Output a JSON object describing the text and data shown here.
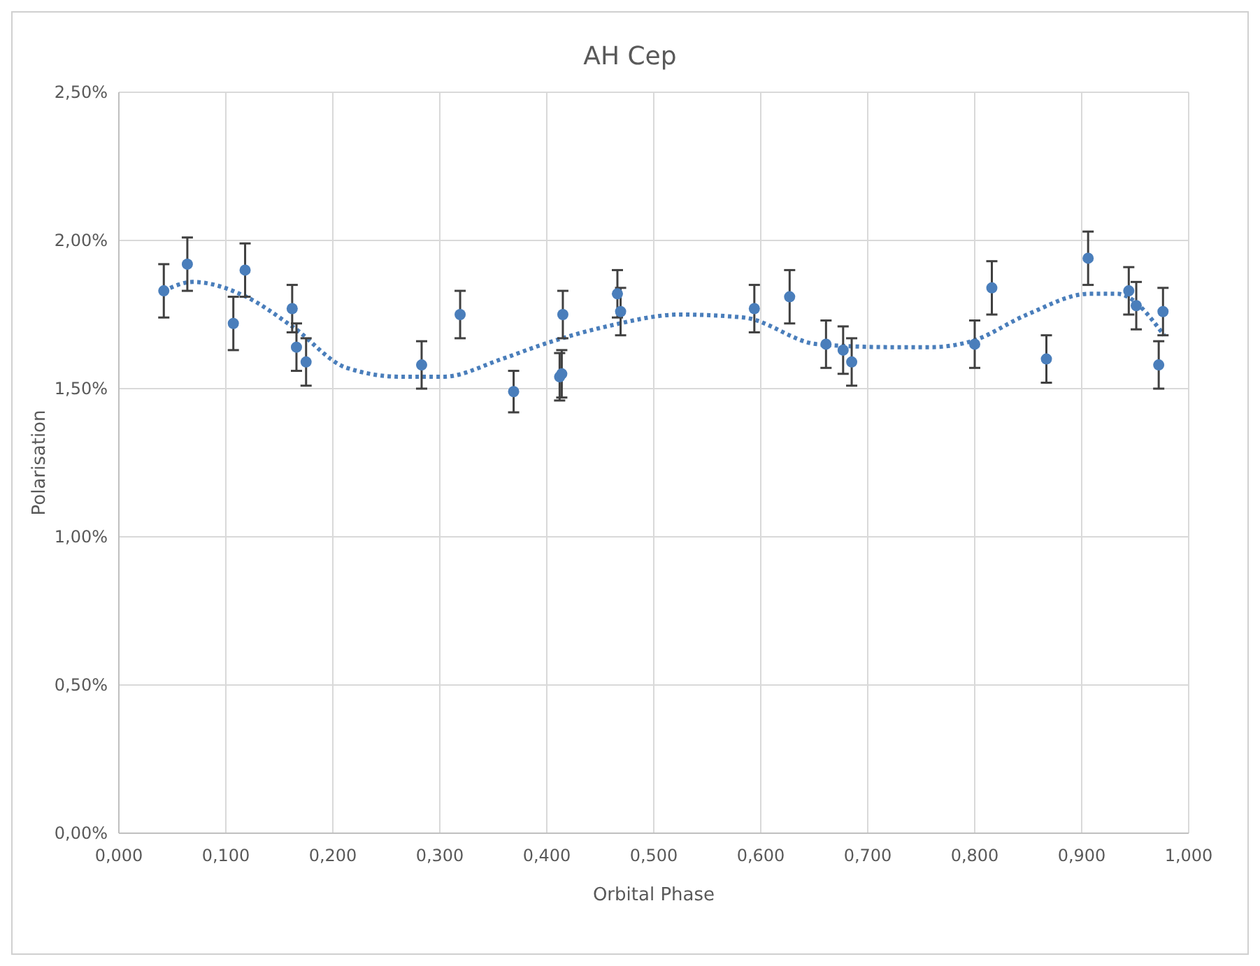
{
  "chart_data": {
    "type": "scatter",
    "title": "AH Cep",
    "xlabel": "Orbital Phase",
    "ylabel": "Polarisation",
    "xlim": [
      0,
      1
    ],
    "ylim": [
      0,
      2.5
    ],
    "xticks": [
      {
        "value": 0,
        "label": "0,000"
      },
      {
        "value": 0.1,
        "label": "0,100"
      },
      {
        "value": 0.2,
        "label": "0,200"
      },
      {
        "value": 0.3,
        "label": "0,300"
      },
      {
        "value": 0.4,
        "label": "0,400"
      },
      {
        "value": 0.5,
        "label": "0,500"
      },
      {
        "value": 0.6,
        "label": "0,600"
      },
      {
        "value": 0.7,
        "label": "0,700"
      },
      {
        "value": 0.8,
        "label": "0,800"
      },
      {
        "value": 0.9,
        "label": "0,900"
      },
      {
        "value": 1,
        "label": "1,000"
      }
    ],
    "yticks": [
      {
        "value": 0,
        "label": "0,00%"
      },
      {
        "value": 0.5,
        "label": "0,50%"
      },
      {
        "value": 1,
        "label": "1,00%"
      },
      {
        "value": 1.5,
        "label": "1,50%"
      },
      {
        "value": 2,
        "label": "2,00%"
      },
      {
        "value": 2.5,
        "label": "2,50%"
      }
    ],
    "grid": true,
    "series": [
      {
        "color": "#4a7ebb",
        "marker": "circle",
        "x": [
          0.042,
          0.064,
          0.107,
          0.118,
          0.162,
          0.166,
          0.175,
          0.283,
          0.319,
          0.369,
          0.412,
          0.414,
          0.415,
          0.466,
          0.469,
          0.594,
          0.627,
          0.661,
          0.677,
          0.685,
          0.8,
          0.816,
          0.867,
          0.906,
          0.944,
          0.951,
          0.972,
          0.976
        ],
        "values": [
          1.83,
          1.92,
          1.72,
          1.9,
          1.77,
          1.64,
          1.59,
          1.58,
          1.75,
          1.49,
          1.54,
          1.55,
          1.75,
          1.82,
          1.76,
          1.77,
          1.81,
          1.65,
          1.63,
          1.59,
          1.65,
          1.84,
          1.6,
          1.94,
          1.83,
          1.78,
          1.58,
          1.76
        ],
        "errors": [
          0.09,
          0.09,
          0.09,
          0.09,
          0.08,
          0.08,
          0.08,
          0.08,
          0.08,
          0.07,
          0.08,
          0.08,
          0.08,
          0.08,
          0.08,
          0.08,
          0.09,
          0.08,
          0.08,
          0.08,
          0.08,
          0.09,
          0.08,
          0.09,
          0.08,
          0.08,
          0.08,
          0.08
        ]
      },
      {
        "type": "line",
        "color": "#4a7ebb",
        "line_style": "dotted",
        "marker": "none",
        "x": [
          0.042,
          0.069,
          0.119,
          0.162,
          0.213,
          0.264,
          0.303,
          0.358,
          0.397,
          0.456,
          0.525,
          0.584,
          0.653,
          0.721,
          0.759,
          0.797,
          0.849,
          0.907,
          0.933,
          0.977
        ],
        "values": [
          1.83,
          1.86,
          1.81,
          1.71,
          1.57,
          1.54,
          1.54,
          1.6,
          1.65,
          1.71,
          1.75,
          1.74,
          1.65,
          1.64,
          1.64,
          1.66,
          1.75,
          1.82,
          1.82,
          1.68
        ]
      }
    ]
  }
}
